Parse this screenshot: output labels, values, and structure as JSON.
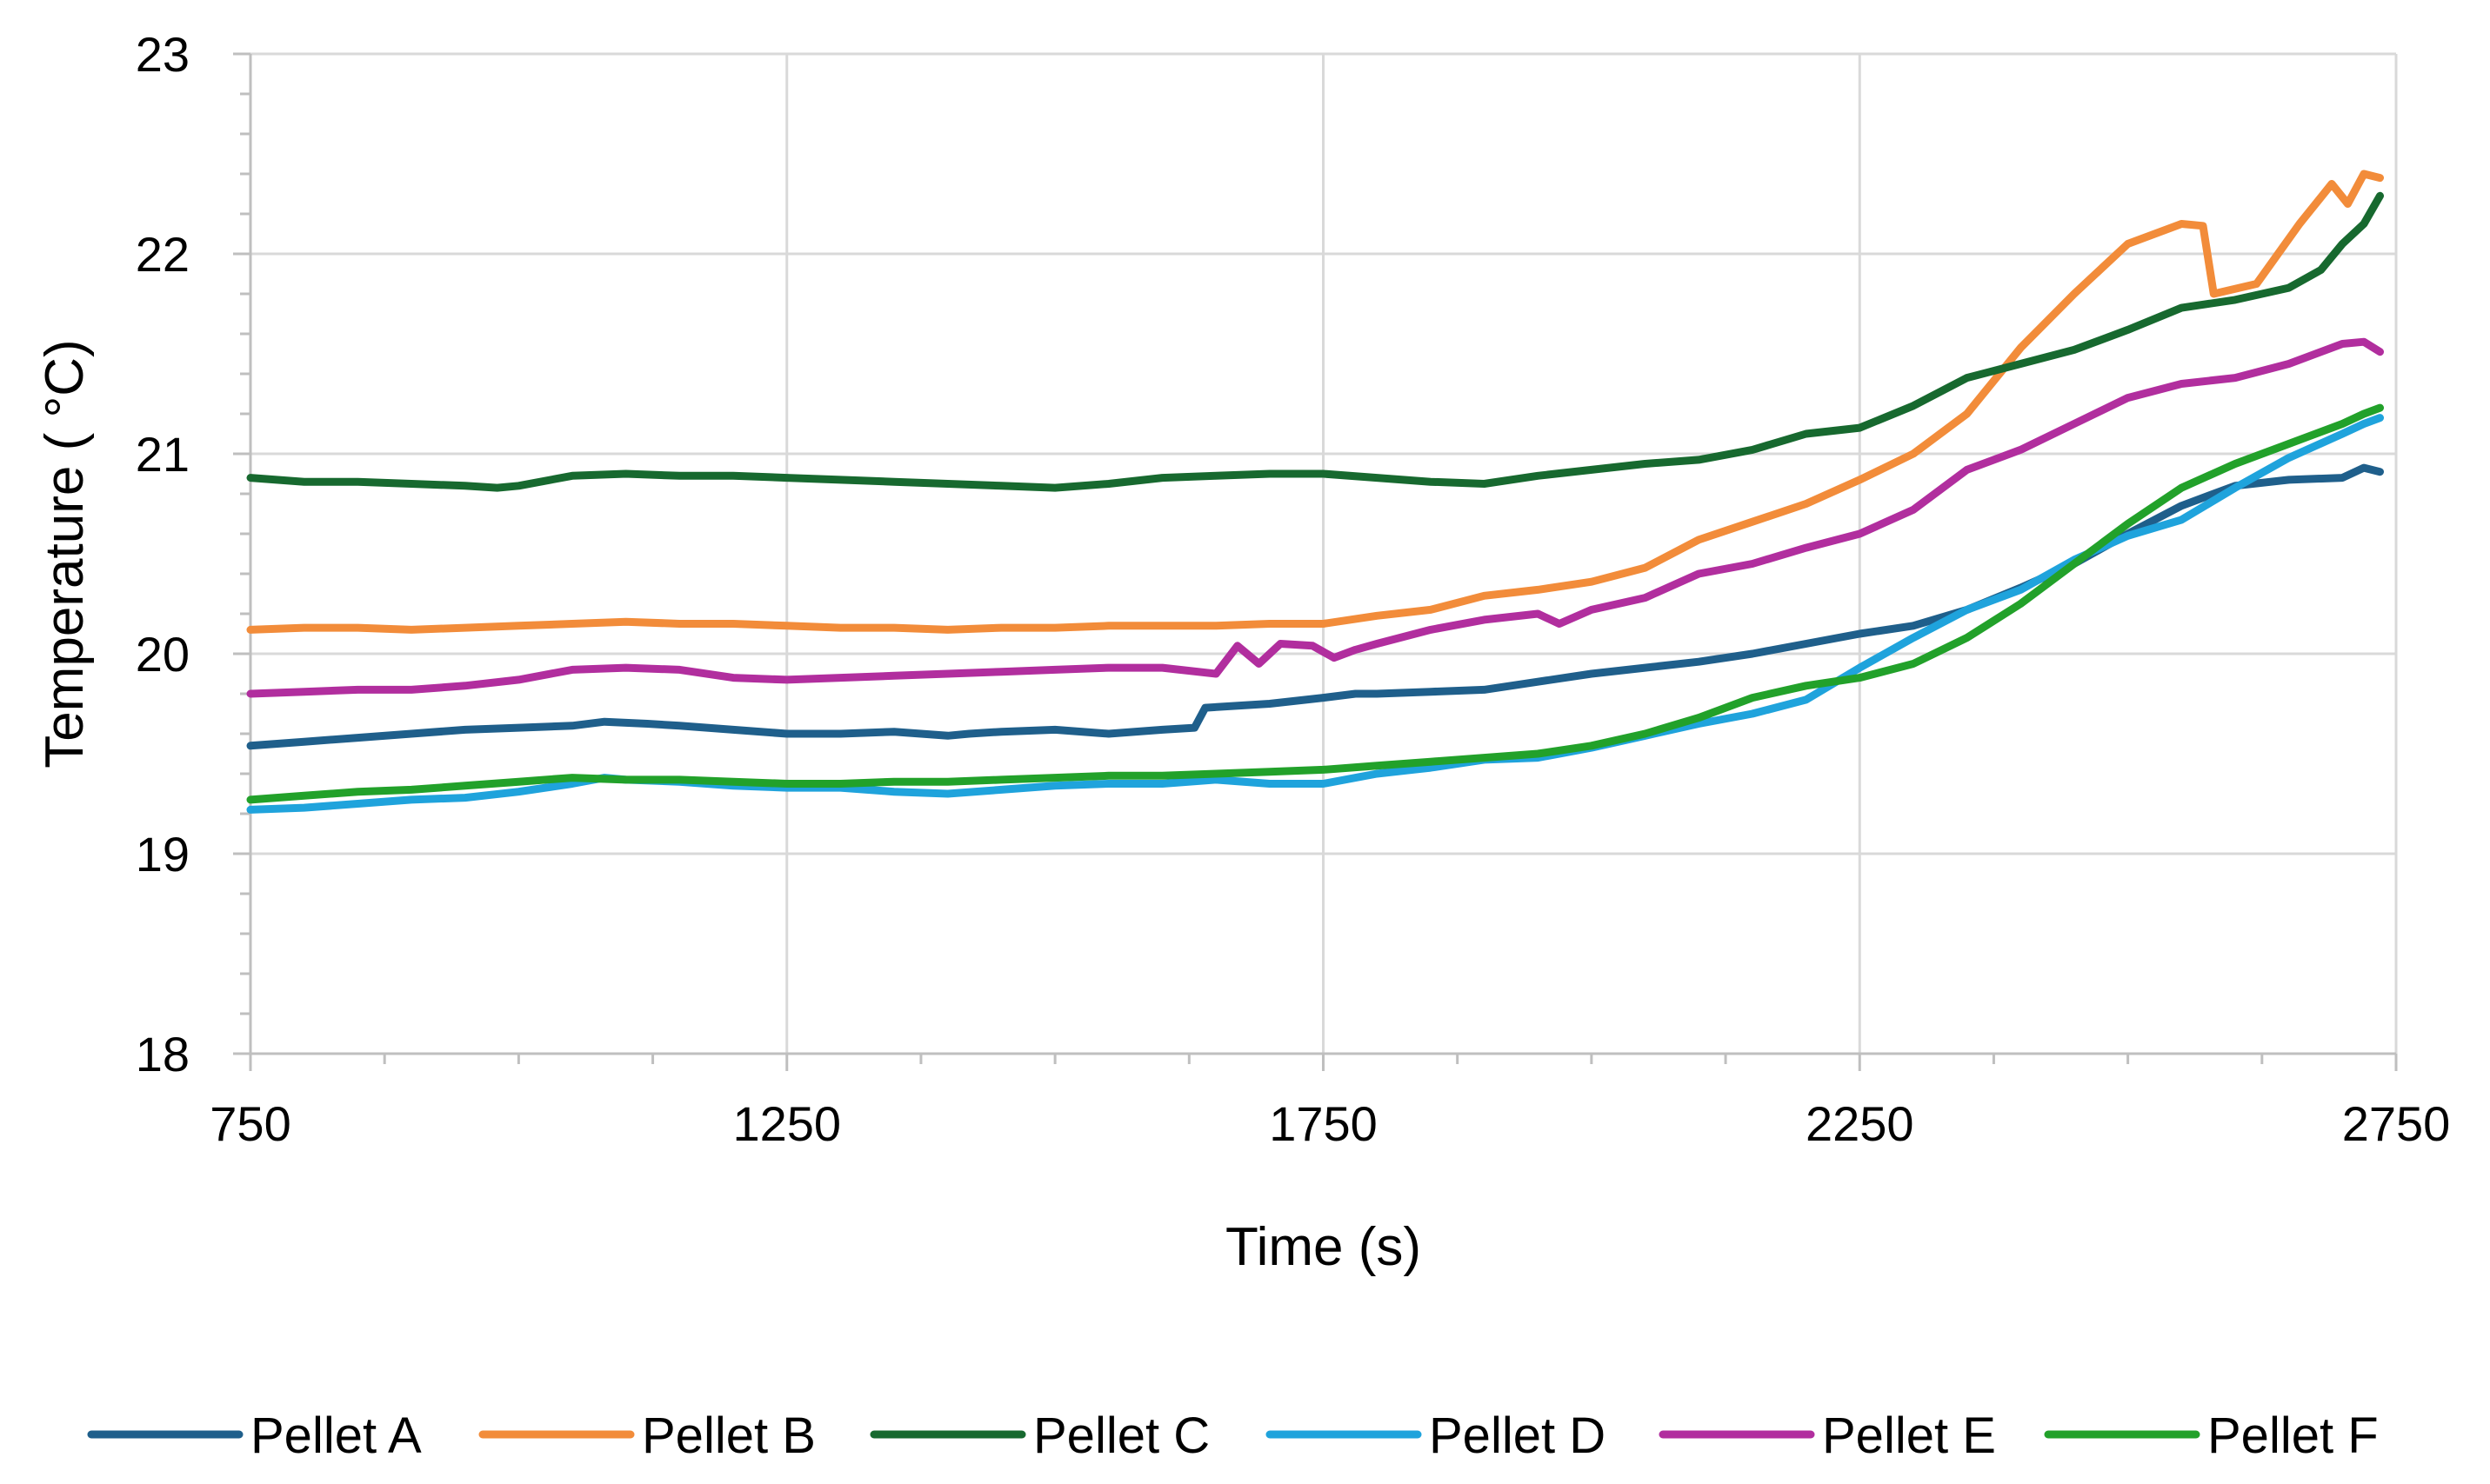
{
  "chart_data": {
    "type": "line",
    "title": "",
    "xlabel": "Time (s)",
    "ylabel": "Temperature ( °C)",
    "xlim": [
      750,
      2750
    ],
    "ylim": [
      18,
      23
    ],
    "x_ticks": [
      "750",
      "1250",
      "1750",
      "2250",
      "2750"
    ],
    "x_tick_values": [
      750,
      1250,
      1750,
      2250,
      2750
    ],
    "y_ticks": [
      "18",
      "19",
      "20",
      "21",
      "22",
      "23"
    ],
    "y_tick_values": [
      18,
      19,
      20,
      21,
      22,
      23
    ],
    "grid": true,
    "legend_position": "bottom",
    "series": [
      {
        "name": "Pellet A",
        "color": "#1F5F8B",
        "points": [
          [
            750,
            19.54
          ],
          [
            800,
            19.56
          ],
          [
            850,
            19.58
          ],
          [
            900,
            19.6
          ],
          [
            950,
            19.62
          ],
          [
            1000,
            19.63
          ],
          [
            1050,
            19.64
          ],
          [
            1080,
            19.66
          ],
          [
            1120,
            19.65
          ],
          [
            1150,
            19.64
          ],
          [
            1200,
            19.62
          ],
          [
            1250,
            19.6
          ],
          [
            1300,
            19.6
          ],
          [
            1350,
            19.61
          ],
          [
            1400,
            19.59
          ],
          [
            1420,
            19.6
          ],
          [
            1450,
            19.61
          ],
          [
            1500,
            19.62
          ],
          [
            1550,
            19.6
          ],
          [
            1600,
            19.62
          ],
          [
            1630,
            19.63
          ],
          [
            1640,
            19.73
          ],
          [
            1700,
            19.75
          ],
          [
            1750,
            19.78
          ],
          [
            1780,
            19.8
          ],
          [
            1800,
            19.8
          ],
          [
            1850,
            19.81
          ],
          [
            1900,
            19.82
          ],
          [
            1950,
            19.86
          ],
          [
            2000,
            19.9
          ],
          [
            2050,
            19.93
          ],
          [
            2100,
            19.96
          ],
          [
            2150,
            20.0
          ],
          [
            2200,
            20.05
          ],
          [
            2250,
            20.1
          ],
          [
            2300,
            20.14
          ],
          [
            2350,
            20.22
          ],
          [
            2400,
            20.33
          ],
          [
            2450,
            20.45
          ],
          [
            2500,
            20.6
          ],
          [
            2550,
            20.74
          ],
          [
            2600,
            20.84
          ],
          [
            2650,
            20.87
          ],
          [
            2700,
            20.88
          ],
          [
            2720,
            20.93
          ],
          [
            2735,
            20.91
          ]
        ]
      },
      {
        "name": "Pellet B",
        "color": "#F28C3A",
        "points": [
          [
            750,
            20.12
          ],
          [
            800,
            20.13
          ],
          [
            850,
            20.13
          ],
          [
            900,
            20.12
          ],
          [
            950,
            20.13
          ],
          [
            1000,
            20.14
          ],
          [
            1050,
            20.15
          ],
          [
            1100,
            20.16
          ],
          [
            1150,
            20.15
          ],
          [
            1200,
            20.15
          ],
          [
            1250,
            20.14
          ],
          [
            1300,
            20.13
          ],
          [
            1350,
            20.13
          ],
          [
            1400,
            20.12
          ],
          [
            1450,
            20.13
          ],
          [
            1500,
            20.13
          ],
          [
            1550,
            20.14
          ],
          [
            1600,
            20.14
          ],
          [
            1650,
            20.14
          ],
          [
            1700,
            20.15
          ],
          [
            1750,
            20.15
          ],
          [
            1800,
            20.19
          ],
          [
            1850,
            20.22
          ],
          [
            1900,
            20.29
          ],
          [
            1950,
            20.32
          ],
          [
            2000,
            20.36
          ],
          [
            2050,
            20.43
          ],
          [
            2100,
            20.57
          ],
          [
            2150,
            20.66
          ],
          [
            2200,
            20.75
          ],
          [
            2250,
            20.87
          ],
          [
            2300,
            21.0
          ],
          [
            2350,
            21.2
          ],
          [
            2400,
            21.53
          ],
          [
            2450,
            21.8
          ],
          [
            2500,
            22.05
          ],
          [
            2550,
            22.15
          ],
          [
            2570,
            22.14
          ],
          [
            2580,
            21.8
          ],
          [
            2620,
            21.85
          ],
          [
            2660,
            22.15
          ],
          [
            2690,
            22.35
          ],
          [
            2705,
            22.25
          ],
          [
            2720,
            22.4
          ],
          [
            2735,
            22.38
          ]
        ]
      },
      {
        "name": "Pellet C",
        "color": "#17692F",
        "points": [
          [
            750,
            20.88
          ],
          [
            800,
            20.86
          ],
          [
            850,
            20.86
          ],
          [
            900,
            20.85
          ],
          [
            950,
            20.84
          ],
          [
            980,
            20.83
          ],
          [
            1000,
            20.84
          ],
          [
            1050,
            20.89
          ],
          [
            1100,
            20.9
          ],
          [
            1150,
            20.89
          ],
          [
            1200,
            20.89
          ],
          [
            1250,
            20.88
          ],
          [
            1300,
            20.87
          ],
          [
            1350,
            20.86
          ],
          [
            1400,
            20.85
          ],
          [
            1450,
            20.84
          ],
          [
            1500,
            20.83
          ],
          [
            1550,
            20.85
          ],
          [
            1600,
            20.88
          ],
          [
            1650,
            20.89
          ],
          [
            1700,
            20.9
          ],
          [
            1750,
            20.9
          ],
          [
            1800,
            20.88
          ],
          [
            1850,
            20.86
          ],
          [
            1900,
            20.85
          ],
          [
            1950,
            20.89
          ],
          [
            2000,
            20.92
          ],
          [
            2050,
            20.95
          ],
          [
            2100,
            20.97
          ],
          [
            2150,
            21.02
          ],
          [
            2200,
            21.1
          ],
          [
            2250,
            21.13
          ],
          [
            2300,
            21.24
          ],
          [
            2350,
            21.38
          ],
          [
            2400,
            21.45
          ],
          [
            2450,
            21.52
          ],
          [
            2500,
            21.62
          ],
          [
            2550,
            21.73
          ],
          [
            2600,
            21.77
          ],
          [
            2650,
            21.83
          ],
          [
            2680,
            21.92
          ],
          [
            2700,
            22.05
          ],
          [
            2720,
            22.15
          ],
          [
            2735,
            22.29
          ]
        ]
      },
      {
        "name": "Pellet D",
        "color": "#1FA3DC",
        "points": [
          [
            750,
            19.22
          ],
          [
            800,
            19.23
          ],
          [
            850,
            19.25
          ],
          [
            900,
            19.27
          ],
          [
            950,
            19.28
          ],
          [
            1000,
            19.31
          ],
          [
            1050,
            19.35
          ],
          [
            1080,
            19.38
          ],
          [
            1100,
            19.37
          ],
          [
            1150,
            19.36
          ],
          [
            1200,
            19.34
          ],
          [
            1250,
            19.33
          ],
          [
            1300,
            19.33
          ],
          [
            1350,
            19.31
          ],
          [
            1400,
            19.3
          ],
          [
            1450,
            19.32
          ],
          [
            1500,
            19.34
          ],
          [
            1550,
            19.35
          ],
          [
            1600,
            19.35
          ],
          [
            1650,
            19.37
          ],
          [
            1700,
            19.35
          ],
          [
            1750,
            19.35
          ],
          [
            1800,
            19.4
          ],
          [
            1850,
            19.43
          ],
          [
            1900,
            19.47
          ],
          [
            1950,
            19.48
          ],
          [
            2000,
            19.53
          ],
          [
            2050,
            19.59
          ],
          [
            2100,
            19.65
          ],
          [
            2150,
            19.7
          ],
          [
            2200,
            19.77
          ],
          [
            2250,
            19.93
          ],
          [
            2300,
            20.08
          ],
          [
            2350,
            20.22
          ],
          [
            2400,
            20.32
          ],
          [
            2450,
            20.47
          ],
          [
            2500,
            20.59
          ],
          [
            2550,
            20.67
          ],
          [
            2600,
            20.83
          ],
          [
            2650,
            20.98
          ],
          [
            2700,
            21.1
          ],
          [
            2720,
            21.15
          ],
          [
            2735,
            21.18
          ]
        ]
      },
      {
        "name": "Pellet E",
        "color": "#B12E9E",
        "points": [
          [
            750,
            19.8
          ],
          [
            800,
            19.81
          ],
          [
            850,
            19.82
          ],
          [
            900,
            19.82
          ],
          [
            950,
            19.84
          ],
          [
            1000,
            19.87
          ],
          [
            1050,
            19.92
          ],
          [
            1100,
            19.93
          ],
          [
            1150,
            19.92
          ],
          [
            1200,
            19.88
          ],
          [
            1250,
            19.87
          ],
          [
            1300,
            19.88
          ],
          [
            1350,
            19.89
          ],
          [
            1400,
            19.9
          ],
          [
            1450,
            19.91
          ],
          [
            1500,
            19.92
          ],
          [
            1550,
            19.93
          ],
          [
            1600,
            19.93
          ],
          [
            1650,
            19.9
          ],
          [
            1670,
            20.04
          ],
          [
            1690,
            19.95
          ],
          [
            1710,
            20.05
          ],
          [
            1740,
            20.04
          ],
          [
            1760,
            19.98
          ],
          [
            1780,
            20.02
          ],
          [
            1800,
            20.05
          ],
          [
            1850,
            20.12
          ],
          [
            1900,
            20.17
          ],
          [
            1950,
            20.2
          ],
          [
            1970,
            20.15
          ],
          [
            2000,
            20.22
          ],
          [
            2050,
            20.28
          ],
          [
            2100,
            20.4
          ],
          [
            2150,
            20.45
          ],
          [
            2200,
            20.53
          ],
          [
            2250,
            20.6
          ],
          [
            2300,
            20.72
          ],
          [
            2350,
            20.92
          ],
          [
            2400,
            21.02
          ],
          [
            2450,
            21.15
          ],
          [
            2500,
            21.28
          ],
          [
            2550,
            21.35
          ],
          [
            2600,
            21.38
          ],
          [
            2650,
            21.45
          ],
          [
            2700,
            21.55
          ],
          [
            2720,
            21.56
          ],
          [
            2735,
            21.51
          ]
        ]
      },
      {
        "name": "Pellet F",
        "color": "#22A12A",
        "points": [
          [
            750,
            19.27
          ],
          [
            800,
            19.29
          ],
          [
            850,
            19.31
          ],
          [
            900,
            19.32
          ],
          [
            950,
            19.34
          ],
          [
            1000,
            19.36
          ],
          [
            1050,
            19.38
          ],
          [
            1100,
            19.37
          ],
          [
            1150,
            19.37
          ],
          [
            1200,
            19.36
          ],
          [
            1250,
            19.35
          ],
          [
            1300,
            19.35
          ],
          [
            1350,
            19.36
          ],
          [
            1400,
            19.36
          ],
          [
            1450,
            19.37
          ],
          [
            1500,
            19.38
          ],
          [
            1550,
            19.39
          ],
          [
            1600,
            19.39
          ],
          [
            1650,
            19.4
          ],
          [
            1700,
            19.41
          ],
          [
            1750,
            19.42
          ],
          [
            1800,
            19.44
          ],
          [
            1850,
            19.46
          ],
          [
            1900,
            19.48
          ],
          [
            1950,
            19.5
          ],
          [
            2000,
            19.54
          ],
          [
            2050,
            19.6
          ],
          [
            2100,
            19.68
          ],
          [
            2150,
            19.78
          ],
          [
            2200,
            19.84
          ],
          [
            2250,
            19.88
          ],
          [
            2300,
            19.95
          ],
          [
            2350,
            20.08
          ],
          [
            2400,
            20.25
          ],
          [
            2450,
            20.45
          ],
          [
            2500,
            20.65
          ],
          [
            2550,
            20.83
          ],
          [
            2600,
            20.95
          ],
          [
            2650,
            21.05
          ],
          [
            2700,
            21.15
          ],
          [
            2720,
            21.2
          ],
          [
            2735,
            21.23
          ]
        ]
      }
    ]
  }
}
